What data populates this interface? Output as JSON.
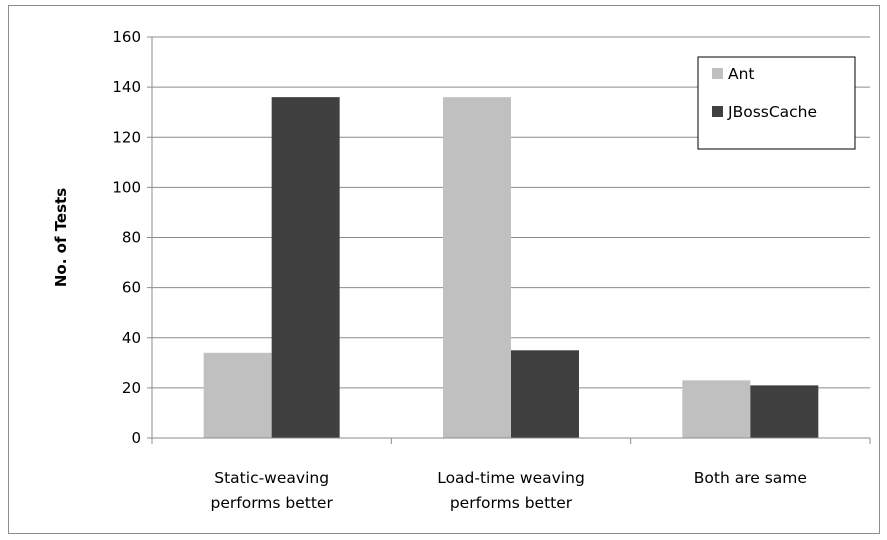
{
  "chart_data": {
    "type": "bar",
    "title": "",
    "xlabel": "",
    "ylabel": "No. of Tests",
    "categories": [
      [
        "Static-weaving",
        "performs better"
      ],
      [
        "Load-time weaving",
        "performs better"
      ],
      [
        "Both are same"
      ]
    ],
    "series": [
      {
        "name": "Ant",
        "color": "#c0c0c0",
        "values": [
          34,
          136,
          23
        ]
      },
      {
        "name": "JBossCache",
        "color": "#404040",
        "values": [
          136,
          35,
          21
        ]
      }
    ],
    "ylim": [
      0,
      160
    ],
    "yticks": [
      0,
      20,
      40,
      60,
      80,
      100,
      120,
      140,
      160
    ],
    "grid": true,
    "legend_position": "top-right"
  }
}
